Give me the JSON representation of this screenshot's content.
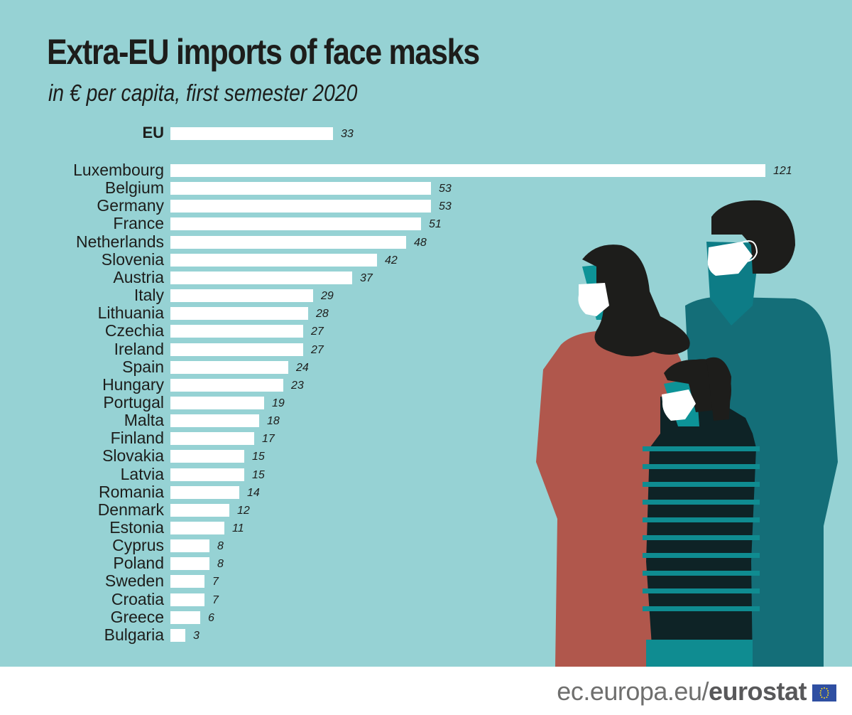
{
  "header": {
    "title": "Extra-EU imports of face masks",
    "subtitle": "in € per capita, first semester 2020"
  },
  "footer": {
    "url_prefix": "ec.europa.eu/",
    "url_brand": "eurostat",
    "logo_icon": "eu-flag-icon"
  },
  "colors": {
    "background": "#96d2d4",
    "bar": "#ffffff",
    "text": "#1d1d1b",
    "woman_coat": "#b0574c",
    "man_sweater": "#146e78",
    "child_stripes_dark": "#0e2326",
    "child_stripes_light": "#0f8c91"
  },
  "chart_data": {
    "type": "bar",
    "orientation": "horizontal",
    "title": "Extra-EU imports of face masks",
    "subtitle": "in € per capita, first semester 2020",
    "xlabel": "",
    "ylabel": "",
    "unit": "€ per capita",
    "grid": false,
    "legend": null,
    "xlim": [
      0,
      121
    ],
    "categories": [
      "EU",
      "Luxembourg",
      "Belgium",
      "Germany",
      "France",
      "Netherlands",
      "Slovenia",
      "Austria",
      "Italy",
      "Lithuania",
      "Czechia",
      "Ireland",
      "Spain",
      "Hungary",
      "Portugal",
      "Malta",
      "Finland",
      "Slovakia",
      "Latvia",
      "Romania",
      "Denmark",
      "Estonia",
      "Cyprus",
      "Poland",
      "Sweden",
      "Croatia",
      "Greece",
      "Bulgaria"
    ],
    "values": [
      33,
      121,
      53,
      53,
      51,
      48,
      42,
      37,
      29,
      28,
      27,
      27,
      24,
      23,
      19,
      18,
      17,
      15,
      15,
      14,
      12,
      11,
      8,
      8,
      7,
      7,
      6,
      3
    ],
    "rows": [
      {
        "label": "EU",
        "value": "33",
        "v": 33,
        "bold": true
      },
      {
        "label": "Luxembourg",
        "value": "121",
        "v": 121
      },
      {
        "label": "Belgium",
        "value": "53",
        "v": 53
      },
      {
        "label": "Germany",
        "value": "53",
        "v": 53
      },
      {
        "label": "France",
        "value": "51",
        "v": 51
      },
      {
        "label": "Netherlands",
        "value": "48",
        "v": 48
      },
      {
        "label": "Slovenia",
        "value": "42",
        "v": 42
      },
      {
        "label": "Austria",
        "value": "37",
        "v": 37
      },
      {
        "label": "Italy",
        "value": "29",
        "v": 29
      },
      {
        "label": "Lithuania",
        "value": "28",
        "v": 28
      },
      {
        "label": "Czechia",
        "value": "27",
        "v": 27
      },
      {
        "label": "Ireland",
        "value": "27",
        "v": 27
      },
      {
        "label": "Spain",
        "value": "24",
        "v": 24
      },
      {
        "label": "Hungary",
        "value": "23",
        "v": 23
      },
      {
        "label": "Portugal",
        "value": "19",
        "v": 19
      },
      {
        "label": "Malta",
        "value": "18",
        "v": 18
      },
      {
        "label": "Finland",
        "value": "17",
        "v": 17
      },
      {
        "label": "Slovakia",
        "value": "15",
        "v": 15
      },
      {
        "label": "Latvia",
        "value": "15",
        "v": 15
      },
      {
        "label": "Romania",
        "value": "14",
        "v": 14
      },
      {
        "label": "Denmark",
        "value": "12",
        "v": 12
      },
      {
        "label": "Estonia",
        "value": "11",
        "v": 11
      },
      {
        "label": "Cyprus",
        "value": "8",
        "v": 8
      },
      {
        "label": "Poland",
        "value": "8",
        "v": 8
      },
      {
        "label": "Sweden",
        "value": "7",
        "v": 7
      },
      {
        "label": "Croatia",
        "value": "7",
        "v": 7
      },
      {
        "label": "Greece",
        "value": "6",
        "v": 6
      },
      {
        "label": "Bulgaria",
        "value": "3",
        "v": 3
      }
    ]
  },
  "illustration": {
    "description": "family of three wearing face masks",
    "icons": [
      "woman-with-mask-icon",
      "man-with-mask-icon",
      "child-with-mask-icon"
    ]
  }
}
